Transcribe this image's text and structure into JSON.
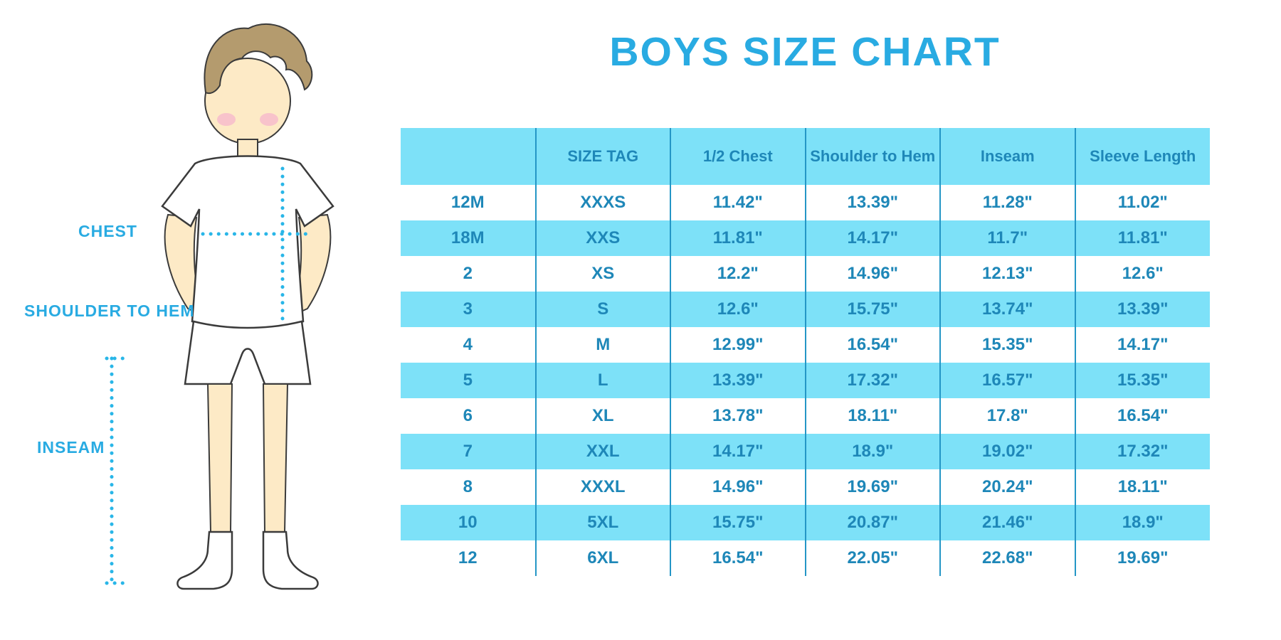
{
  "page": {
    "title": "BOYS SIZE CHART"
  },
  "figure": {
    "labels": {
      "chest": "CHEST",
      "shoulder_to_hem": "SHOULDER TO HEM",
      "inseam": "INSEAM"
    }
  },
  "colors": {
    "accent_blue": "#29abe2",
    "row_band": "#7de1f8",
    "table_text": "#1e87b8",
    "divider": "#2496c6",
    "measure_dots": "#29b6e8",
    "skin": "#fdeac6",
    "hair": "#b49b6e",
    "cheek": "#f7bccb"
  },
  "chart_data": {
    "type": "table",
    "title": "BOYS SIZE CHART",
    "columns": [
      "",
      "SIZE TAG",
      "1/2 Chest",
      "Shoulder to Hem",
      "Inseam",
      "Sleeve Length"
    ],
    "rows": [
      [
        "12M",
        "XXXS",
        "11.42\"",
        "13.39\"",
        "11.28\"",
        "11.02\""
      ],
      [
        "18M",
        "XXS",
        "11.81\"",
        "14.17\"",
        "11.7\"",
        "11.81\""
      ],
      [
        "2",
        "XS",
        "12.2\"",
        "14.96\"",
        "12.13\"",
        "12.6\""
      ],
      [
        "3",
        "S",
        "12.6\"",
        "15.75\"",
        "13.74\"",
        "13.39\""
      ],
      [
        "4",
        "M",
        "12.99\"",
        "16.54\"",
        "15.35\"",
        "14.17\""
      ],
      [
        "5",
        "L",
        "13.39\"",
        "17.32\"",
        "16.57\"",
        "15.35\""
      ],
      [
        "6",
        "XL",
        "13.78\"",
        "18.11\"",
        "17.8\"",
        "16.54\""
      ],
      [
        "7",
        "XXL",
        "14.17\"",
        "18.9\"",
        "19.02\"",
        "17.32\""
      ],
      [
        "8",
        "XXXL",
        "14.96\"",
        "19.69\"",
        "20.24\"",
        "18.11\""
      ],
      [
        "10",
        "5XL",
        "15.75\"",
        "20.87\"",
        "21.46\"",
        "18.9\""
      ],
      [
        "12",
        "6XL",
        "16.54\"",
        "22.05\"",
        "22.68\"",
        "19.69\""
      ]
    ]
  }
}
